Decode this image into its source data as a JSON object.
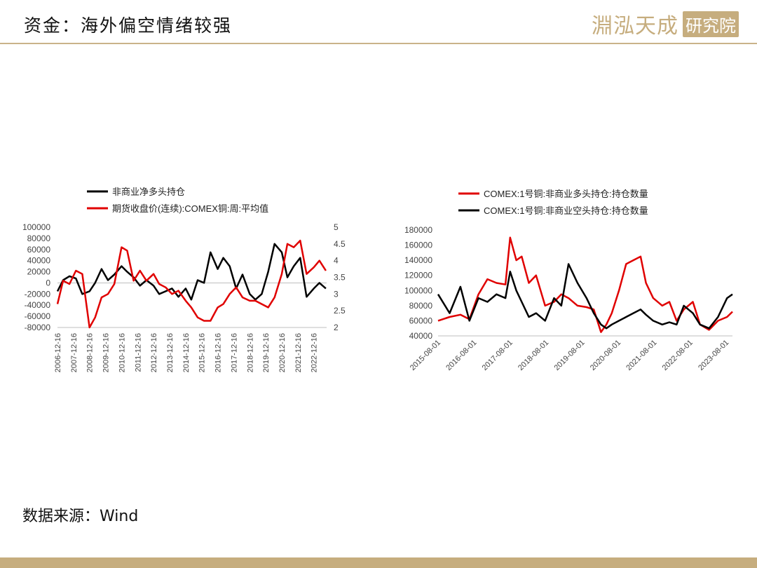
{
  "header": {
    "title": "资金：海外偏空情绪较强",
    "logo_text": "淵泓天成",
    "logo_seal": "研究院"
  },
  "footer": {
    "source": "数据来源：Wind"
  },
  "colors": {
    "red": "#e00000",
    "black": "#000000",
    "accent": "#c6ad7e"
  },
  "chart_data": [
    {
      "type": "line",
      "series": [
        {
          "name": "非商业净多头持仓",
          "axis": "left",
          "color": "#000000",
          "x": [
            2006.95,
            2007.3,
            2007.7,
            2008.1,
            2008.5,
            2008.95,
            2009.3,
            2009.7,
            2010.1,
            2010.5,
            2010.95,
            2011.3,
            2011.7,
            2012.1,
            2012.5,
            2012.95,
            2013.3,
            2013.7,
            2014.1,
            2014.5,
            2014.95,
            2015.3,
            2015.7,
            2016.1,
            2016.5,
            2016.95,
            2017.3,
            2017.7,
            2018.1,
            2018.5,
            2018.95,
            2019.3,
            2019.7,
            2020.1,
            2020.5,
            2020.95,
            2021.3,
            2021.7,
            2022.1,
            2022.5,
            2022.95,
            2023.3,
            2023.7
          ],
          "y": [
            -15000,
            5000,
            12000,
            8000,
            -20000,
            -15000,
            0,
            25000,
            5000,
            15000,
            30000,
            20000,
            10000,
            -5000,
            5000,
            -5000,
            -20000,
            -15000,
            -10000,
            -25000,
            -10000,
            -30000,
            5000,
            0,
            55000,
            25000,
            45000,
            30000,
            -10000,
            15000,
            -20000,
            -30000,
            -20000,
            20000,
            70000,
            55000,
            10000,
            30000,
            45000,
            -25000,
            -10000,
            0,
            -10000
          ]
        },
        {
          "name": "期货收盘价(连续):COMEX铜:周:平均值",
          "axis": "right",
          "color": "#e00000",
          "x": [
            2006.95,
            2007.3,
            2007.7,
            2008.1,
            2008.5,
            2008.95,
            2009.3,
            2009.7,
            2010.1,
            2010.5,
            2010.95,
            2011.3,
            2011.7,
            2012.1,
            2012.5,
            2012.95,
            2013.3,
            2013.7,
            2014.1,
            2014.5,
            2014.95,
            2015.3,
            2015.7,
            2016.1,
            2016.5,
            2016.95,
            2017.3,
            2017.7,
            2018.1,
            2018.5,
            2018.95,
            2019.3,
            2019.7,
            2020.1,
            2020.5,
            2020.95,
            2021.3,
            2021.7,
            2022.1,
            2022.5,
            2022.95,
            2023.3,
            2023.7
          ],
          "y": [
            2.7,
            3.4,
            3.3,
            3.7,
            3.6,
            2.0,
            2.3,
            2.9,
            3.0,
            3.3,
            4.4,
            4.3,
            3.4,
            3.7,
            3.4,
            3.6,
            3.3,
            3.2,
            3.0,
            3.1,
            2.8,
            2.6,
            2.3,
            2.2,
            2.2,
            2.6,
            2.7,
            3.0,
            3.2,
            2.9,
            2.8,
            2.8,
            2.7,
            2.6,
            2.9,
            3.6,
            4.5,
            4.4,
            4.6,
            3.6,
            3.8,
            4.0,
            3.7
          ]
        }
      ],
      "legend": [
        "非商业净多头持仓",
        "期货收盘价(连续):COMEX铜:周:平均值"
      ],
      "legend_position": "top",
      "ylim_left": [
        -80000,
        100000
      ],
      "ylim_right": [
        2,
        5
      ],
      "y_ticks_left": [
        "100000",
        "80000",
        "60000",
        "40000",
        "20000",
        "0",
        "-20000",
        "-40000",
        "-60000",
        "-80000"
      ],
      "y_ticks_right": [
        "5",
        "4.5",
        "4",
        "3.5",
        "3",
        "2.5",
        "2"
      ],
      "x_ticks": [
        "2006-12-16",
        "2007-12-16",
        "2008-12-16",
        "2009-12-16",
        "2010-12-16",
        "2011-12-16",
        "2012-12-16",
        "2013-12-16",
        "2014-12-16",
        "2015-12-16",
        "2016-12-16",
        "2017-12-16",
        "2018-12-16",
        "2019-12-16",
        "2020-12-16",
        "2021-12-16",
        "2022-12-16"
      ],
      "xlim": [
        2006.95,
        2023.75
      ],
      "grid": false
    },
    {
      "type": "line",
      "series": [
        {
          "name": "COMEX:1号铜:非商业多头持仓:持仓数量",
          "color": "#e00000",
          "x": [
            2015.58,
            2015.9,
            2016.2,
            2016.45,
            2016.7,
            2016.95,
            2017.2,
            2017.45,
            2017.58,
            2017.75,
            2017.9,
            2018.1,
            2018.3,
            2018.55,
            2018.8,
            2019.0,
            2019.2,
            2019.45,
            2019.7,
            2019.9,
            2020.1,
            2020.25,
            2020.4,
            2020.6,
            2020.8,
            2021.0,
            2021.2,
            2021.35,
            2021.55,
            2021.8,
            2022.0,
            2022.2,
            2022.4,
            2022.65,
            2022.85,
            2023.1,
            2023.35,
            2023.6,
            2023.75
          ],
          "y": [
            60000,
            65000,
            68000,
            62000,
            95000,
            115000,
            110000,
            108000,
            170000,
            140000,
            145000,
            110000,
            120000,
            80000,
            85000,
            95000,
            90000,
            80000,
            78000,
            75000,
            45000,
            55000,
            70000,
            100000,
            135000,
            140000,
            145000,
            110000,
            90000,
            80000,
            85000,
            60000,
            75000,
            85000,
            55000,
            48000,
            60000,
            65000,
            72000
          ]
        },
        {
          "name": "COMEX:1号铜:非商业空头持仓:持仓数量",
          "color": "#000000",
          "x": [
            2015.58,
            2015.9,
            2016.2,
            2016.45,
            2016.7,
            2016.95,
            2017.2,
            2017.45,
            2017.58,
            2017.75,
            2017.9,
            2018.1,
            2018.3,
            2018.55,
            2018.8,
            2019.0,
            2019.2,
            2019.45,
            2019.7,
            2019.9,
            2020.1,
            2020.25,
            2020.4,
            2020.6,
            2020.8,
            2021.0,
            2021.2,
            2021.35,
            2021.55,
            2021.8,
            2022.0,
            2022.2,
            2022.4,
            2022.65,
            2022.85,
            2023.1,
            2023.35,
            2023.6,
            2023.75
          ],
          "y": [
            95000,
            70000,
            105000,
            60000,
            90000,
            85000,
            95000,
            90000,
            125000,
            100000,
            85000,
            65000,
            70000,
            60000,
            90000,
            80000,
            135000,
            110000,
            90000,
            70000,
            55000,
            50000,
            55000,
            60000,
            65000,
            70000,
            75000,
            68000,
            60000,
            55000,
            58000,
            55000,
            80000,
            70000,
            55000,
            50000,
            65000,
            90000,
            95000
          ]
        }
      ],
      "legend": [
        "COMEX:1号铜:非商业多头持仓:持仓数量",
        "COMEX:1号铜:非商业空头持仓:持仓数量"
      ],
      "legend_position": "top",
      "ylim": [
        40000,
        180000
      ],
      "y_ticks": [
        "180000",
        "160000",
        "140000",
        "120000",
        "100000",
        "80000",
        "60000",
        "40000"
      ],
      "x_ticks": [
        "2015-08-01",
        "2016-08-01",
        "2017-08-01",
        "2018-08-01",
        "2019-08-01",
        "2020-08-01",
        "2021-08-01",
        "2022-08-01",
        "2023-08-01"
      ],
      "xlim": [
        2015.58,
        2023.75
      ],
      "grid": false
    }
  ]
}
